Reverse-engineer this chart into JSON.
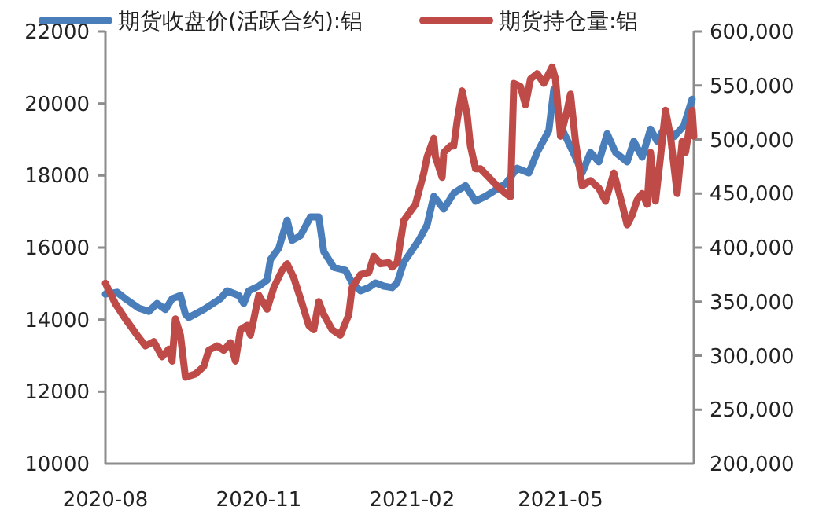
{
  "chart_data": {
    "type": "line",
    "legend": "top",
    "grid": false,
    "marker": "none",
    "line_style": "solid",
    "xlim": [
      "2020-08-01",
      "2021-07-20"
    ],
    "xticks": [
      {
        "value": "2020-08-01",
        "label": "2020-08"
      },
      {
        "value": "2020-11-01",
        "label": "2020-11"
      },
      {
        "value": "2021-02-01",
        "label": "2021-02"
      },
      {
        "value": "2021-05-01",
        "label": "2021-05"
      }
    ],
    "ylim": [
      10000,
      22000
    ],
    "yticks": [
      10000,
      12000,
      14000,
      16000,
      18000,
      20000,
      22000
    ],
    "y2lim": [
      200000,
      600000
    ],
    "y2ticks": [
      {
        "value": 200000,
        "label": "200,000"
      },
      {
        "value": 250000,
        "label": "250,000"
      },
      {
        "value": 300000,
        "label": "300,000"
      },
      {
        "value": 350000,
        "label": "350,000"
      },
      {
        "value": 400000,
        "label": "400,000"
      },
      {
        "value": 450000,
        "label": "450,000"
      },
      {
        "value": 500000,
        "label": "500,000"
      },
      {
        "value": 550000,
        "label": "550,000"
      },
      {
        "value": 600000,
        "label": "600,000"
      }
    ],
    "series": [
      {
        "name": "期货收盘价(活跃合约):铝",
        "color": "#4a7ebb",
        "x": [
          "2020-08-01",
          "2020-08-08",
          "2020-08-13",
          "2020-08-21",
          "2020-08-27",
          "2020-09-01",
          "2020-09-06",
          "2020-09-10",
          "2020-09-15",
          "2020-09-18",
          "2020-09-20",
          "2020-09-29",
          "2020-10-09",
          "2020-10-13",
          "2020-10-20",
          "2020-10-23",
          "2020-10-26",
          "2020-11-01",
          "2020-11-06",
          "2020-11-08",
          "2020-11-13",
          "2020-11-18",
          "2020-11-21",
          "2020-11-26",
          "2020-12-02",
          "2020-12-07",
          "2020-12-10",
          "2020-12-16",
          "2020-12-23",
          "2020-12-27",
          "2021-01-01",
          "2021-01-06",
          "2021-01-10",
          "2021-01-15",
          "2021-01-20",
          "2021-01-23",
          "2021-01-27",
          "2021-02-05",
          "2021-02-10",
          "2021-02-14",
          "2021-02-20",
          "2021-02-26",
          "2021-03-05",
          "2021-03-11",
          "2021-03-17",
          "2021-03-29",
          "2021-04-05",
          "2021-04-12",
          "2021-04-17",
          "2021-04-24",
          "2021-04-27",
          "2021-05-01",
          "2021-05-10",
          "2021-05-14",
          "2021-05-19",
          "2021-05-24",
          "2021-05-29",
          "2021-06-03",
          "2021-06-10",
          "2021-06-14",
          "2021-06-19",
          "2021-06-24",
          "2021-06-28",
          "2021-07-03",
          "2021-07-08",
          "2021-07-14",
          "2021-07-19"
        ],
        "values": [
          14710,
          14760,
          14580,
          14320,
          14230,
          14450,
          14280,
          14580,
          14670,
          14150,
          14060,
          14280,
          14580,
          14800,
          14670,
          14450,
          14800,
          14930,
          15100,
          15670,
          15980,
          16760,
          16200,
          16330,
          16850,
          16850,
          15890,
          15450,
          15370,
          15020,
          14800,
          14890,
          15020,
          14930,
          14890,
          15020,
          15590,
          16200,
          16630,
          17420,
          17070,
          17510,
          17720,
          17290,
          17420,
          17770,
          18200,
          18070,
          18640,
          19250,
          20390,
          19380,
          18510,
          18070,
          18640,
          18380,
          19160,
          18640,
          18380,
          18950,
          18510,
          19290,
          18950,
          19380,
          19080,
          19380,
          20120
        ]
      },
      {
        "name": "期货持仓量:铝",
        "color": "#be4b48",
        "axis": "y2",
        "x": [
          "2020-08-01",
          "2020-08-07",
          "2020-08-13",
          "2020-08-20",
          "2020-08-25",
          "2020-08-30",
          "2020-09-04",
          "2020-09-08",
          "2020-09-10",
          "2020-09-12",
          "2020-09-15",
          "2020-09-18",
          "2020-09-24",
          "2020-09-29",
          "2020-10-02",
          "2020-10-07",
          "2020-10-11",
          "2020-10-15",
          "2020-10-18",
          "2020-10-21",
          "2020-10-25",
          "2020-10-27",
          "2020-11-01",
          "2020-11-06",
          "2020-11-10",
          "2020-11-15",
          "2020-11-18",
          "2020-11-22",
          "2020-11-26",
          "2020-12-01",
          "2020-12-04",
          "2020-12-07",
          "2020-12-10",
          "2020-12-15",
          "2020-12-20",
          "2020-12-25",
          "2020-12-27",
          "2021-01-01",
          "2021-01-06",
          "2021-01-09",
          "2021-01-13",
          "2021-01-18",
          "2021-01-20",
          "2021-01-23",
          "2021-01-27",
          "2021-02-03",
          "2021-02-08",
          "2021-02-10",
          "2021-02-14",
          "2021-02-15",
          "2021-02-19",
          "2021-02-20",
          "2021-02-24",
          "2021-02-26",
          "2021-02-28",
          "2021-03-03",
          "2021-03-06",
          "2021-03-08",
          "2021-03-11",
          "2021-03-14",
          "2021-03-19",
          "2021-03-24",
          "2021-03-29",
          "2021-04-01",
          "2021-04-03",
          "2021-04-07",
          "2021-04-10",
          "2021-04-13",
          "2021-04-17",
          "2021-04-21",
          "2021-04-26",
          "2021-04-28",
          "2021-05-01",
          "2021-05-05",
          "2021-05-07",
          "2021-05-10",
          "2021-05-14",
          "2021-05-19",
          "2021-05-24",
          "2021-05-28",
          "2021-06-02",
          "2021-06-07",
          "2021-06-10",
          "2021-06-13",
          "2021-06-16",
          "2021-06-19",
          "2021-06-22",
          "2021-06-24",
          "2021-06-27",
          "2021-06-30",
          "2021-07-03",
          "2021-07-06",
          "2021-07-10",
          "2021-07-13",
          "2021-07-15",
          "2021-07-19",
          "2021-07-20"
        ],
        "values": [
          367000,
          348000,
          334000,
          319000,
          309000,
          313000,
          299000,
          306000,
          295000,
          334000,
          319000,
          280000,
          283000,
          290000,
          305000,
          309000,
          305000,
          312000,
          295000,
          324000,
          328000,
          319000,
          356000,
          343000,
          363000,
          379000,
          385000,
          372000,
          353000,
          328000,
          324000,
          350000,
          338000,
          324000,
          319000,
          338000,
          363000,
          375000,
          377000,
          392000,
          385000,
          386000,
          382000,
          386000,
          425000,
          440000,
          469000,
          484000,
          501000,
          484000,
          465000,
          488000,
          494000,
          494000,
          517000,
          545000,
          523000,
          494000,
          473000,
          473000,
          465000,
          457000,
          450000,
          447000,
          552000,
          549000,
          532000,
          556000,
          561000,
          552000,
          567000,
          556000,
          503000,
          527000,
          542000,
          498000,
          457000,
          462000,
          455000,
          443000,
          469000,
          440000,
          421000,
          430000,
          444000,
          450000,
          440000,
          488000,
          443000,
          484000,
          527000,
          503000,
          450000,
          498000,
          488000,
          527000,
          503000
        ]
      }
    ]
  }
}
